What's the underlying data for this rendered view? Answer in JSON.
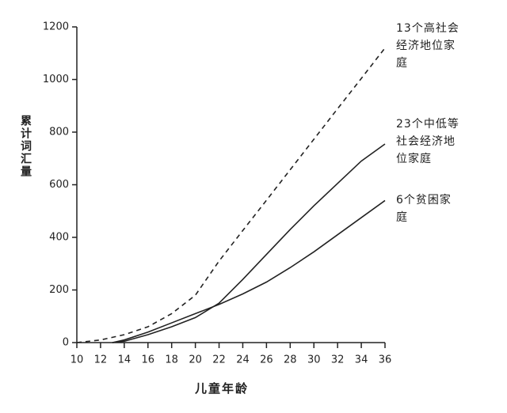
{
  "chart_data": {
    "type": "line",
    "y_label": "累计词汇量",
    "x_label": "儿童年龄",
    "x": [
      10,
      12,
      13,
      14,
      16,
      18,
      20,
      22,
      24,
      26,
      28,
      30,
      32,
      34,
      36
    ],
    "series": [
      {
        "name": "13个高社会经济地位家庭",
        "color": "#222222",
        "dashed": true,
        "values": [
          0,
          10,
          20,
          30,
          60,
          110,
          180,
          310,
          426,
          541,
          657,
          773,
          889,
          1004,
          1120
        ]
      },
      {
        "name": "23个中低等社会经济地位家庭",
        "color": "#222222",
        "dashed": false,
        "values": [
          null,
          null,
          0,
          5,
          30,
          60,
          95,
          150,
          240,
          335,
          430,
          520,
          605,
          690,
          755
        ]
      },
      {
        "name": "6个贫困家庭",
        "color": "#222222",
        "dashed": false,
        "values": [
          null,
          null,
          0,
          10,
          40,
          75,
          110,
          145,
          185,
          230,
          285,
          345,
          410,
          475,
          540
        ]
      }
    ],
    "xlim": [
      10,
      36
    ],
    "xticks": [
      10,
      12,
      14,
      16,
      18,
      20,
      22,
      24,
      26,
      28,
      30,
      32,
      34,
      36
    ],
    "ylim": [
      0,
      1200
    ],
    "yticks": [
      0,
      200,
      400,
      600,
      800,
      1000,
      1200
    ]
  }
}
